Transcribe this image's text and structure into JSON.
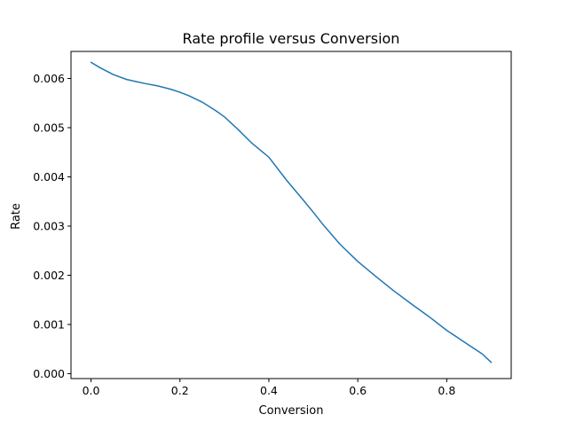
{
  "chart_data": {
    "type": "line",
    "title": "Rate profile versus Conversion",
    "xlabel": "Conversion",
    "ylabel": "Rate",
    "xlim": [
      -0.045,
      0.945
    ],
    "ylim": [
      -0.0001,
      0.00655
    ],
    "xticks": [
      0.0,
      0.2,
      0.4,
      0.6,
      0.8
    ],
    "xtick_labels": [
      "0.0",
      "0.2",
      "0.4",
      "0.6",
      "0.8"
    ],
    "yticks": [
      0.0,
      0.001,
      0.002,
      0.003,
      0.004,
      0.005,
      0.006
    ],
    "ytick_labels": [
      "0.000",
      "0.001",
      "0.002",
      "0.003",
      "0.004",
      "0.005",
      "0.006"
    ],
    "grid": false,
    "line_color": "#1f77b4",
    "series": [
      {
        "x": [
          0.0,
          0.02,
          0.05,
          0.08,
          0.1,
          0.12,
          0.15,
          0.18,
          0.2,
          0.22,
          0.25,
          0.28,
          0.3,
          0.33,
          0.36,
          0.4,
          0.44,
          0.48,
          0.5,
          0.52,
          0.56,
          0.6,
          0.64,
          0.68,
          0.72,
          0.76,
          0.8,
          0.84,
          0.88,
          0.9
        ],
        "y": [
          0.00633,
          0.00622,
          0.00608,
          0.00598,
          0.00594,
          0.0059,
          0.00585,
          0.00578,
          0.00572,
          0.00565,
          0.00552,
          0.00535,
          0.00522,
          0.00497,
          0.0047,
          0.0044,
          0.00393,
          0.0035,
          0.00328,
          0.00305,
          0.00263,
          0.00228,
          0.00198,
          0.00169,
          0.00142,
          0.00116,
          0.00088,
          0.00064,
          0.0004,
          0.00023
        ]
      }
    ]
  }
}
